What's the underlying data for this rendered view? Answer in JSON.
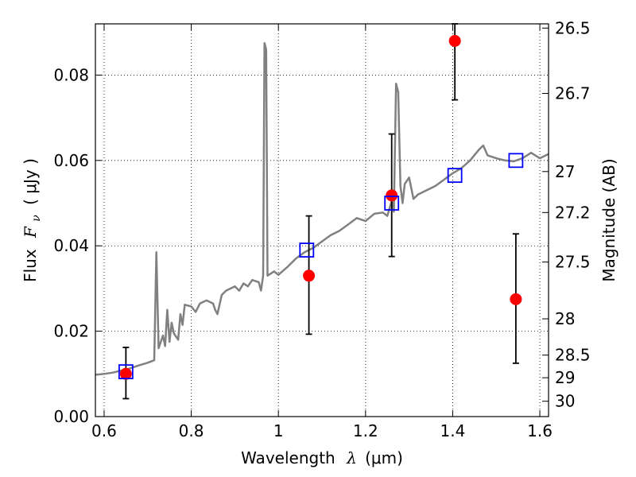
{
  "chart_data": {
    "type": "scatter",
    "xlabel_text": "Wavelength",
    "xlabel_symbol": "λ",
    "xlabel_unit": "(μm)",
    "ylabel_left_text": "Flux",
    "ylabel_left_symbol": "F",
    "ylabel_left_subscript": "ν",
    "ylabel_left_unit": "( μJy )",
    "ylabel_right": "Magnitude (AB)",
    "xlim": [
      0.58,
      1.62
    ],
    "ylim": [
      0.0,
      0.092
    ],
    "grid": true,
    "x_ticks": [
      {
        "value": 0.6,
        "label": "0.6"
      },
      {
        "value": 0.8,
        "label": "0.8"
      },
      {
        "value": 1.0,
        "label": "1"
      },
      {
        "value": 1.2,
        "label": "1.2"
      },
      {
        "value": 1.4,
        "label": "1.4"
      },
      {
        "value": 1.6,
        "label": "1.6"
      }
    ],
    "y_ticks": [
      {
        "value": 0.0,
        "label": "0.00"
      },
      {
        "value": 0.02,
        "label": "0.02"
      },
      {
        "value": 0.04,
        "label": "0.04"
      },
      {
        "value": 0.06,
        "label": "0.06"
      },
      {
        "value": 0.08,
        "label": "0.08"
      }
    ],
    "mag_ticks": [
      {
        "label": "26.5",
        "flux": 0.091
      },
      {
        "label": "26.7",
        "flux": 0.0757
      },
      {
        "label": "27",
        "flux": 0.0574
      },
      {
        "label": "27.2",
        "flux": 0.0478
      },
      {
        "label": "27.5",
        "flux": 0.0362
      },
      {
        "label": "28",
        "flux": 0.0229
      },
      {
        "label": "28.5",
        "flux": 0.0144
      },
      {
        "label": "29",
        "flux": 0.0091
      },
      {
        "label": "30",
        "flux": 0.0036
      }
    ],
    "series": [
      {
        "kind": "line",
        "color": "#808080",
        "values": [
          [
            0.58,
            0.0098
          ],
          [
            0.6,
            0.01
          ],
          [
            0.62,
            0.0103
          ],
          [
            0.64,
            0.0108
          ],
          [
            0.66,
            0.0113
          ],
          [
            0.68,
            0.012
          ],
          [
            0.7,
            0.0126
          ],
          [
            0.715,
            0.0132
          ],
          [
            0.72,
            0.0385
          ],
          [
            0.725,
            0.016
          ],
          [
            0.735,
            0.019
          ],
          [
            0.74,
            0.0165
          ],
          [
            0.745,
            0.025
          ],
          [
            0.75,
            0.0175
          ],
          [
            0.755,
            0.022
          ],
          [
            0.76,
            0.0195
          ],
          [
            0.77,
            0.018
          ],
          [
            0.775,
            0.024
          ],
          [
            0.78,
            0.0215
          ],
          [
            0.785,
            0.0262
          ],
          [
            0.8,
            0.0258
          ],
          [
            0.81,
            0.0245
          ],
          [
            0.82,
            0.0265
          ],
          [
            0.835,
            0.0272
          ],
          [
            0.85,
            0.0265
          ],
          [
            0.855,
            0.025
          ],
          [
            0.86,
            0.024
          ],
          [
            0.87,
            0.0285
          ],
          [
            0.88,
            0.0295
          ],
          [
            0.9,
            0.0305
          ],
          [
            0.91,
            0.0295
          ],
          [
            0.92,
            0.0312
          ],
          [
            0.93,
            0.0305
          ],
          [
            0.94,
            0.032
          ],
          [
            0.955,
            0.0315
          ],
          [
            0.96,
            0.0295
          ],
          [
            0.965,
            0.033
          ],
          [
            0.968,
            0.0875
          ],
          [
            0.972,
            0.086
          ],
          [
            0.975,
            0.033
          ],
          [
            0.99,
            0.034
          ],
          [
            1.0,
            0.0332
          ],
          [
            1.02,
            0.035
          ],
          [
            1.04,
            0.037
          ],
          [
            1.06,
            0.0385
          ],
          [
            1.08,
            0.0395
          ],
          [
            1.1,
            0.041
          ],
          [
            1.12,
            0.0425
          ],
          [
            1.14,
            0.0435
          ],
          [
            1.16,
            0.045
          ],
          [
            1.18,
            0.0465
          ],
          [
            1.2,
            0.0458
          ],
          [
            1.22,
            0.0475
          ],
          [
            1.24,
            0.0478
          ],
          [
            1.25,
            0.047
          ],
          [
            1.26,
            0.0505
          ],
          [
            1.265,
            0.048
          ],
          [
            1.27,
            0.078
          ],
          [
            1.275,
            0.076
          ],
          [
            1.28,
            0.054
          ],
          [
            1.285,
            0.05
          ],
          [
            1.29,
            0.0545
          ],
          [
            1.3,
            0.056
          ],
          [
            1.31,
            0.051
          ],
          [
            1.32,
            0.052
          ],
          [
            1.34,
            0.053
          ],
          [
            1.36,
            0.054
          ],
          [
            1.38,
            0.0555
          ],
          [
            1.4,
            0.057
          ],
          [
            1.42,
            0.0582
          ],
          [
            1.44,
            0.06
          ],
          [
            1.46,
            0.0625
          ],
          [
            1.47,
            0.0635
          ],
          [
            1.48,
            0.0612
          ],
          [
            1.5,
            0.0605
          ],
          [
            1.52,
            0.06
          ],
          [
            1.54,
            0.0598
          ],
          [
            1.56,
            0.0605
          ],
          [
            1.58,
            0.0618
          ],
          [
            1.6,
            0.0605
          ],
          [
            1.62,
            0.0615
          ]
        ]
      },
      {
        "kind": "markers-square",
        "color": "#0000ff",
        "points": [
          {
            "x": 0.65,
            "y": 0.0105
          },
          {
            "x": 1.065,
            "y": 0.039
          },
          {
            "x": 1.26,
            "y": 0.05
          },
          {
            "x": 1.405,
            "y": 0.0565
          },
          {
            "x": 1.545,
            "y": 0.06
          }
        ]
      },
      {
        "kind": "markers-circle-errorbar",
        "color": "#ff0000",
        "points": [
          {
            "x": 0.65,
            "y": 0.01,
            "lo": 0.0042,
            "hi": 0.0162
          },
          {
            "x": 1.07,
            "y": 0.033,
            "lo": 0.0193,
            "hi": 0.047
          },
          {
            "x": 1.26,
            "y": 0.0518,
            "lo": 0.0375,
            "hi": 0.0662
          },
          {
            "x": 1.405,
            "y": 0.088,
            "lo": 0.0742,
            "hi": 0.092
          },
          {
            "x": 1.545,
            "y": 0.0275,
            "lo": 0.0125,
            "hi": 0.0428
          }
        ]
      }
    ]
  }
}
